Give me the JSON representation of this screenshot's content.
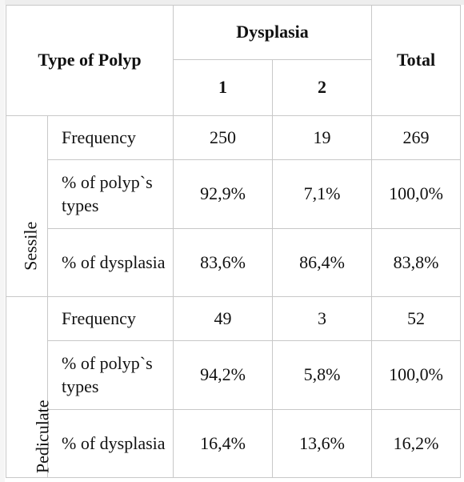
{
  "header": {
    "type_of_polyp": "Type of Polyp",
    "dysplasia": "Dysplasia",
    "total": "Total",
    "dysplasia_levels": [
      "1",
      "2"
    ]
  },
  "groups": [
    {
      "name": "Sessile",
      "rows": [
        {
          "label": "Frequency",
          "d1": "250",
          "d2": "19",
          "total": "269"
        },
        {
          "label": "% of polyp`s types",
          "d1": "92,9%",
          "d2": "7,1%",
          "total": "100,0%"
        },
        {
          "label": "% of dysplasia",
          "d1": "83,6%",
          "d2": "86,4%",
          "total": "83,8%"
        }
      ]
    },
    {
      "name": "Pediculate",
      "rows": [
        {
          "label": "Frequency",
          "d1": "49",
          "d2": "3",
          "total": "52"
        },
        {
          "label": "% of polyp`s types",
          "d1": "94,2%",
          "d2": "5,8%",
          "total": "100,0%"
        },
        {
          "label": "% of dysplasia",
          "d1": "16,4%",
          "d2": "13,6%",
          "total": "16,2%"
        }
      ]
    }
  ]
}
